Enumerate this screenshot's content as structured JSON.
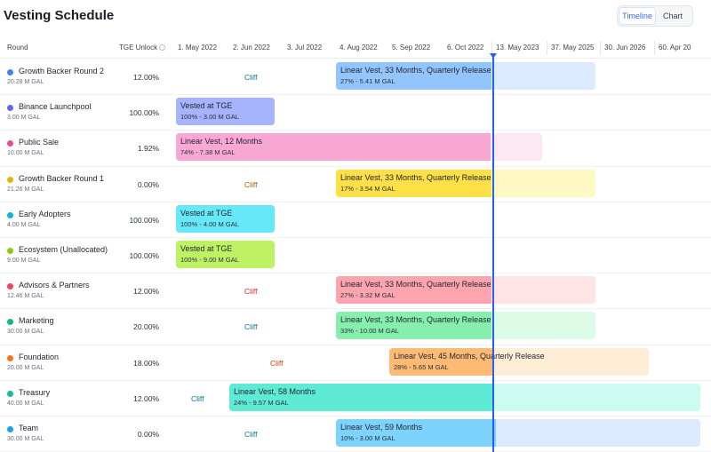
{
  "page": {
    "title": "Vesting Schedule"
  },
  "view_toggle": {
    "options": [
      "Timeline",
      "Chart"
    ],
    "active": "Timeline"
  },
  "table_header": {
    "round": "Round",
    "tge_unlock": "TGE Unlock"
  },
  "timeline_dates": [
    "1. May 2022",
    "2. Jun 2022",
    "3. Jul 2022",
    "4. Aug 2022",
    "5. Sep 2022",
    "6. Oct 2022",
    "13. May 2023",
    "37. May 2025",
    "30. Jun 2026",
    "60. Apr 20"
  ],
  "rounds": [
    {
      "name": "Growth Backer Round 2",
      "amount": "20.28 M GAL",
      "tge": "12.00%",
      "dot": "#3b82f6",
      "cliff": "Cliff",
      "cliff_color": "#0e7490",
      "bar": {
        "title": "Linear Vest, 33 Months, Quarterly Release",
        "detail": "27% - 5.41 M GAL",
        "fill": "#93c5fd",
        "bg": "#dbeafe",
        "progress": 0.6
      }
    },
    {
      "name": "Binance Launchpool",
      "amount": "3.00 M GAL",
      "tge": "100.00%",
      "dot": "#6366f1",
      "cliff": "",
      "cliff_color": "",
      "bar": {
        "title": "Vested at TGE",
        "detail": "100% - 3.00 M GAL",
        "fill": "#a5b4fc",
        "bg": "#a5b4fc",
        "progress": 1.0
      }
    },
    {
      "name": "Public Sale",
      "amount": "10.00 M GAL",
      "tge": "1.92%",
      "dot": "#ec4899",
      "cliff": "",
      "cliff_color": "",
      "bar": {
        "title": "Linear Vest, 12 Months",
        "detail": "74% - 7.38 M GAL",
        "fill": "#f9a8d4",
        "bg": "#fce7f3",
        "progress": 0.86
      }
    },
    {
      "name": "Growth Backer Round 1",
      "amount": "21.26 M GAL",
      "tge": "0.00%",
      "dot": "#eab308",
      "cliff": "Cliff",
      "cliff_color": "#a16207",
      "bar": {
        "title": "Linear Vest, 33 Months, Quarterly Release",
        "detail": "17% - 3.54 M GAL",
        "fill": "#fde047",
        "bg": "#fef9c3",
        "progress": 0.6
      }
    },
    {
      "name": "Early Adopters",
      "amount": "4.00 M GAL",
      "tge": "100.00%",
      "dot": "#06b6d4",
      "cliff": "",
      "cliff_color": "",
      "bar": {
        "title": "Vested at TGE",
        "detail": "100% - 4.00 M GAL",
        "fill": "#67e8f9",
        "bg": "#67e8f9",
        "progress": 1.0
      }
    },
    {
      "name": "Ecosystem (Unallocated)",
      "amount": "9.00 M GAL",
      "tge": "100.00%",
      "dot": "#84cc16",
      "cliff": "",
      "cliff_color": "",
      "bar": {
        "title": "Vested at TGE",
        "detail": "100% - 9.00 M GAL",
        "fill": "#bef264",
        "bg": "#bef264",
        "progress": 1.0
      }
    },
    {
      "name": "Advisors & Partners",
      "amount": "12.46 M GAL",
      "tge": "12.00%",
      "dot": "#f43f5e",
      "cliff": "Cliff",
      "cliff_color": "#dc2626",
      "bar": {
        "title": "Linear Vest, 33 Months, Quarterly Release",
        "detail": "27% - 3.32 M GAL",
        "fill": "#fda4af",
        "bg": "#ffe4e6",
        "progress": 0.6
      }
    },
    {
      "name": "Marketing",
      "amount": "30.00 M GAL",
      "tge": "20.00%",
      "dot": "#10b981",
      "cliff": "Cliff",
      "cliff_color": "#0e7490",
      "bar": {
        "title": "Linear Vest, 33 Months, Quarterly Release",
        "detail": "33% - 10.00 M GAL",
        "fill": "#86efac",
        "bg": "#dcfce7",
        "progress": 0.6
      }
    },
    {
      "name": "Foundation",
      "amount": "20.00 M GAL",
      "tge": "18.00%",
      "dot": "#f97316",
      "cliff": "Cliff",
      "cliff_color": "#c2410c",
      "bar": {
        "title": "Linear Vest, 45 Months, Quarterly Release",
        "detail": "28% - 5.65 M GAL",
        "fill": "#fdba74",
        "bg": "#ffedd5",
        "progress": 0.4
      }
    },
    {
      "name": "Treasury",
      "amount": "40.00 M GAL",
      "tge": "12.00%",
      "dot": "#14b8a6",
      "cliff": "Cliff",
      "cliff_color": "#0e7490",
      "bar": {
        "title": "Linear Vest, 58 Months",
        "detail": "24% - 9.57 M GAL",
        "fill": "#5eead4",
        "bg": "#ccfbf1",
        "progress": 0.56
      }
    },
    {
      "name": "Team",
      "amount": "30.00 M GAL",
      "tge": "0.00%",
      "dot": "#0ea5e9",
      "cliff": "Cliff",
      "cliff_color": "#0e7490",
      "bar": {
        "title": "Linear Vest, 59 Months",
        "detail": "10% - 3.00 M GAL",
        "fill": "#7dd3fc",
        "bg": "#dbeafe",
        "progress": 0.44
      }
    }
  ]
}
